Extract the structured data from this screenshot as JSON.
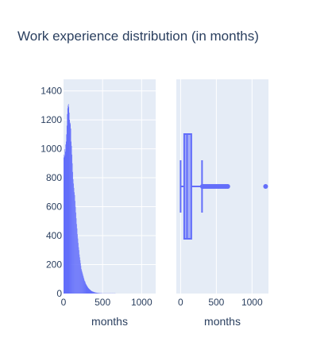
{
  "chart_data": {
    "title": "Work experience distribution (in months)",
    "colors": {
      "bar": "#636efa",
      "plot_bg": "#e5ecf6",
      "grid": "#ffffff",
      "text": "#2a3f5f"
    },
    "histogram": {
      "type": "bar",
      "xlabel": "months",
      "ylabel": "",
      "xlim": [
        0,
        1180
      ],
      "ylim": [
        0,
        1480
      ],
      "xticks": [
        0,
        500,
        1000
      ],
      "yticks": [
        0,
        200,
        400,
        600,
        800,
        1000,
        1200,
        1400
      ],
      "bin_width": 5,
      "bin_starts": [
        0,
        5,
        10,
        15,
        20,
        25,
        30,
        35,
        40,
        45,
        50,
        55,
        60,
        65,
        70,
        75,
        80,
        85,
        90,
        95,
        100,
        105,
        110,
        115,
        120,
        125,
        130,
        135,
        140,
        145,
        150,
        155,
        160,
        165,
        170,
        175,
        180,
        185,
        190,
        195,
        200,
        205,
        210,
        215,
        220,
        225,
        230,
        235,
        240,
        245,
        250,
        255,
        260,
        265,
        270,
        275,
        280,
        285,
        290,
        295,
        300,
        305,
        310,
        315,
        320,
        325,
        330,
        335,
        340,
        345,
        350,
        355,
        360,
        365,
        370,
        375,
        380,
        385,
        390,
        395,
        400,
        405,
        410,
        415,
        420,
        425,
        430,
        435,
        440,
        445,
        450,
        455,
        460,
        465,
        470,
        475,
        480,
        485,
        490,
        495,
        500,
        510,
        520,
        530,
        540,
        550,
        560,
        570,
        580,
        590,
        600,
        620,
        640,
        660
      ],
      "counts": [
        940,
        960,
        950,
        1000,
        980,
        1030,
        1050,
        1100,
        1160,
        1240,
        1280,
        1300,
        1310,
        1290,
        1250,
        1200,
        1170,
        1180,
        1140,
        1050,
        1020,
        960,
        900,
        840,
        790,
        760,
        730,
        700,
        680,
        640,
        600,
        560,
        520,
        480,
        450,
        410,
        380,
        350,
        320,
        300,
        270,
        250,
        230,
        210,
        190,
        170,
        160,
        150,
        140,
        130,
        120,
        110,
        100,
        90,
        85,
        80,
        70,
        65,
        60,
        55,
        50,
        46,
        42,
        38,
        35,
        32,
        30,
        27,
        25,
        22,
        20,
        18,
        16,
        15,
        14,
        13,
        12,
        11,
        10,
        9,
        8,
        7,
        7,
        6,
        6,
        5,
        5,
        4,
        4,
        4,
        3,
        3,
        3,
        2,
        2,
        2,
        2,
        2,
        1,
        1,
        1,
        1,
        1,
        1,
        1,
        1,
        1,
        1,
        1,
        1,
        1,
        1,
        1,
        1
      ]
    },
    "box": {
      "type": "box",
      "xlabel": "months",
      "xlim": [
        -60,
        1230
      ],
      "xticks": [
        0,
        500,
        1000
      ],
      "min": 0,
      "q1": 50,
      "median": 90,
      "q3": 150,
      "upper_fence": 300,
      "outliers": [
        305,
        320,
        340,
        360,
        380,
        400,
        420,
        440,
        460,
        480,
        500,
        520,
        540,
        560,
        580,
        600,
        620,
        640,
        660,
        1190
      ]
    }
  }
}
